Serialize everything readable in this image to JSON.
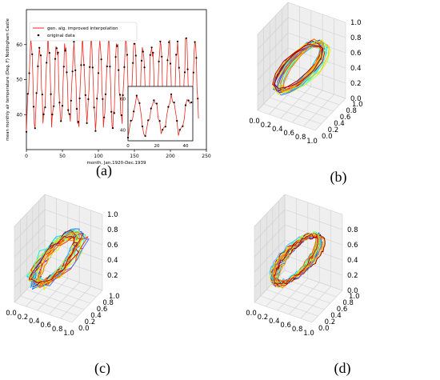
{
  "panels": [
    {
      "id": "a",
      "caption": "(a)",
      "type": "line",
      "xlabel": "month, Jan.1920-Dec.1939",
      "ylabel": "mean monthly air temperature (Deg. F) Nottingham Castle",
      "xlim": [
        0,
        250
      ],
      "ylim": [
        30,
        70
      ],
      "xticks": [
        "0",
        "50",
        "100",
        "150",
        "200",
        "250"
      ],
      "yticks": [
        "40",
        "50",
        "60"
      ],
      "legend": [
        "gen. alg. improved interpolation",
        "original data"
      ],
      "inset": {
        "xlim": [
          0,
          45
        ],
        "ylim": [
          33,
          68
        ],
        "xticks": [
          "0",
          "20",
          "40"
        ],
        "yticks": [
          "40",
          "60"
        ]
      },
      "months": 240
    },
    {
      "id": "b",
      "caption": "(b)",
      "type": "line3d",
      "x_ticks": [
        "0.0",
        "0.2",
        "0.4",
        "0.6",
        "0.8",
        "1.0"
      ],
      "y_ticks": [
        "0.0",
        "0.2",
        "0.4",
        "0.6",
        "0.8",
        "1.0"
      ],
      "z_ticks": [
        "0.0",
        "0.2",
        "0.4",
        "0.6",
        "0.8",
        "1.0"
      ],
      "zmax": 1.0,
      "style": "smooth",
      "loops": 22
    },
    {
      "id": "c",
      "caption": "(c)",
      "type": "line3d",
      "x_ticks": [
        "0.0",
        "0.2",
        "0.4",
        "0.6",
        "0.8",
        "1.0"
      ],
      "y_ticks": [
        "0.0",
        "0.2",
        "0.4",
        "0.6",
        "0.8",
        "1.0"
      ],
      "z_ticks": [
        "0.2",
        "0.4",
        "0.6",
        "0.8",
        "1.0"
      ],
      "zmax": 1.0,
      "style": "spiky",
      "loops": 22
    },
    {
      "id": "d",
      "caption": "(d)",
      "type": "line3d",
      "x_ticks": [
        "0.0",
        "0.2",
        "0.4",
        "0.6",
        "0.8",
        "1.0"
      ],
      "y_ticks": [
        "0.0",
        "0.2",
        "0.4",
        "0.6",
        "0.8",
        "1.0"
      ],
      "z_ticks": [
        "0.0",
        "0.2",
        "0.4",
        "0.6",
        "0.8"
      ],
      "zmax": 0.95,
      "style": "round",
      "loops": 22
    }
  ],
  "chart_data": [
    {
      "type": "line",
      "title": "",
      "xlabel": "month, Jan.1920-Dec.1939",
      "ylabel": "mean monthly air temperature (Deg. F) Nottingham Castle",
      "xlim": [
        0,
        250
      ],
      "ylim": [
        30,
        70
      ],
      "series": [
        {
          "name": "gen. alg. improved interpolation",
          "description_of_values": "monthly temperature, annual cycle"
        },
        {
          "name": "original data"
        }
      ],
      "model": {
        "mean": 49.0,
        "amplitude": 11.5,
        "period_months": 12,
        "count": 240
      }
    },
    {
      "type": "line3d",
      "panel": "b",
      "axes": {
        "x": [
          0,
          1
        ],
        "y": [
          0,
          1
        ],
        "z": [
          0,
          1
        ]
      }
    },
    {
      "type": "line3d",
      "panel": "c",
      "axes": {
        "x": [
          0,
          1
        ],
        "y": [
          0,
          1
        ],
        "z": [
          0.1,
          1
        ]
      }
    },
    {
      "type": "line3d",
      "panel": "d",
      "axes": {
        "x": [
          0,
          1
        ],
        "y": [
          0,
          1
        ],
        "z": [
          0,
          0.95
        ]
      }
    }
  ]
}
